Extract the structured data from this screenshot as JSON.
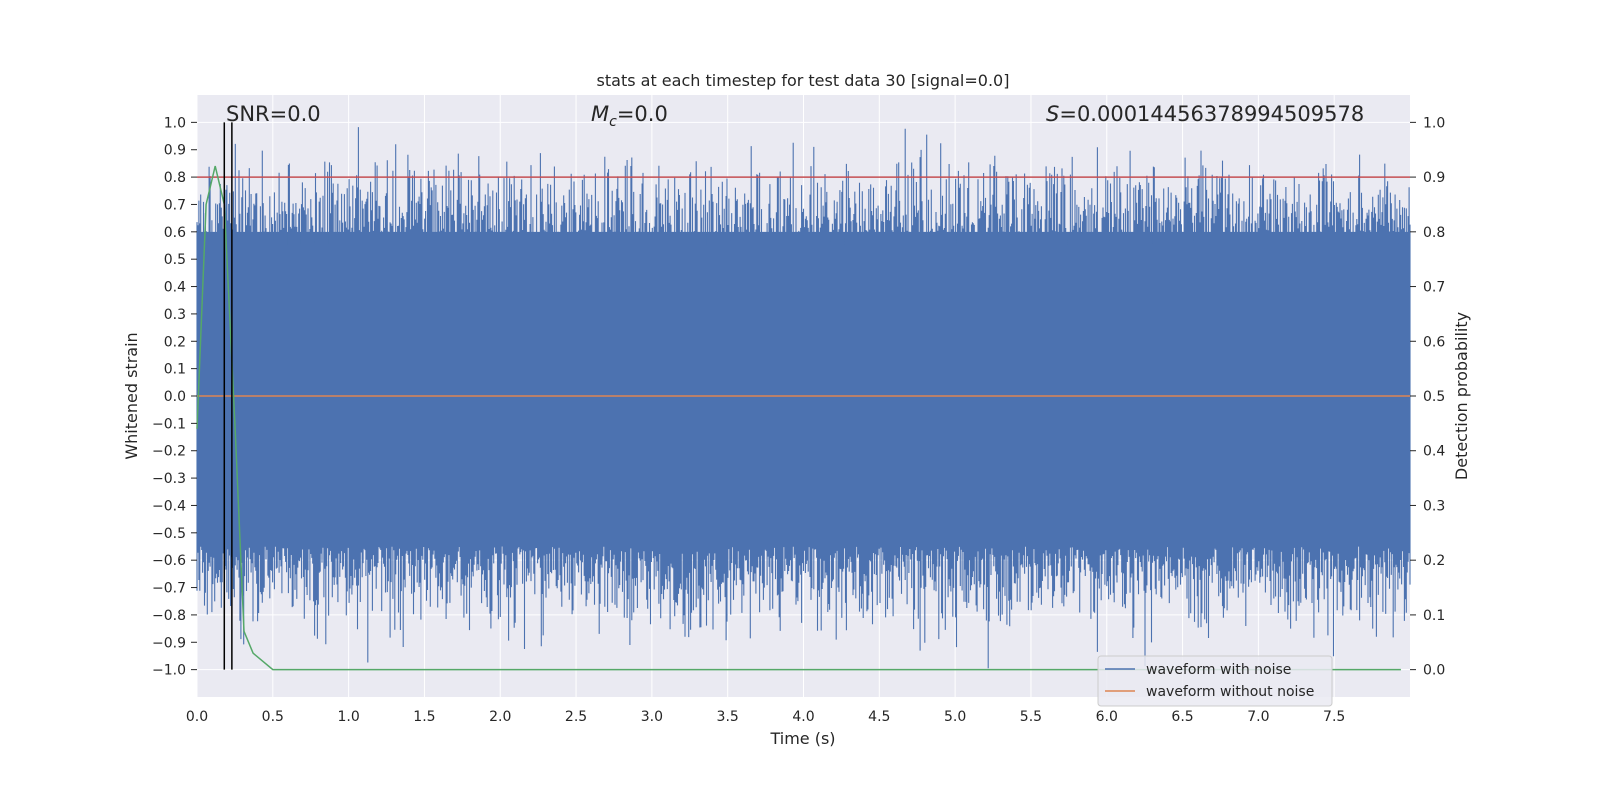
{
  "chart_data": {
    "type": "line",
    "title": "stats at each timestep for test data 30 [signal=0.0]",
    "xlabel": "Time (s)",
    "ylabel_left": "Whitened strain",
    "ylabel_right": "Detection probability",
    "xlim": [
      0.0,
      8.0
    ],
    "ylim_left": [
      -1.1,
      1.1
    ],
    "ylim_right": [
      -0.05,
      1.05
    ],
    "xticks": [
      "0.0",
      "0.5",
      "1.0",
      "1.5",
      "2.0",
      "2.5",
      "3.0",
      "3.5",
      "4.0",
      "4.5",
      "5.0",
      "5.5",
      "6.0",
      "6.5",
      "7.0",
      "7.5"
    ],
    "yticks_left": [
      "1.0",
      "0.9",
      "0.8",
      "0.7",
      "0.6",
      "0.5",
      "0.4",
      "0.3",
      "0.2",
      "0.1",
      "0.0",
      "−0.1",
      "−0.2",
      "−0.3",
      "−0.4",
      "−0.5",
      "−0.6",
      "−0.7",
      "−0.8",
      "−0.9",
      "−1.0"
    ],
    "yticks_right": [
      "1.0",
      "0.9",
      "0.8",
      "0.7",
      "0.6",
      "0.5",
      "0.4",
      "0.3",
      "0.2",
      "0.1",
      "0.0"
    ],
    "annotations": {
      "snr": "SNR=0.0",
      "mc_symbol": "M",
      "mc_sub": "c",
      "mc_value": "=0.0",
      "s_symbol": "S",
      "s_value": "=0.00014456378994509578"
    },
    "series": [
      {
        "name": "waveform with noise",
        "color": "#4c72b0",
        "axis": "left",
        "description": "noise clipped to [-1, 1]",
        "amplitude_range": [
          -1.0,
          1.0
        ]
      },
      {
        "name": "waveform without noise",
        "color": "#dd8452",
        "axis": "left",
        "values_const": 0.0
      },
      {
        "name": "detection probability",
        "color": "#55a868",
        "axis": "right",
        "x": [
          0.0,
          0.06,
          0.12,
          0.18,
          0.25,
          0.31,
          0.37,
          0.5,
          1.0,
          2.0,
          3.0,
          4.0,
          5.0,
          6.0,
          7.0,
          7.94
        ],
        "y": [
          0.44,
          0.85,
          0.92,
          0.85,
          0.45,
          0.07,
          0.03,
          0.0,
          0.0,
          0.0,
          0.0,
          0.0,
          0.0,
          0.0,
          0.0,
          0.0
        ]
      },
      {
        "name": "threshold",
        "color": "#c44e52",
        "axis": "right",
        "values_const": 0.9
      }
    ],
    "vlines": [
      {
        "x": 0.18,
        "color": "#000000"
      },
      {
        "x": 0.23,
        "color": "#000000"
      }
    ],
    "legend": {
      "location": "lower-right",
      "entries": [
        "waveform with noise",
        "waveform without noise"
      ]
    }
  }
}
